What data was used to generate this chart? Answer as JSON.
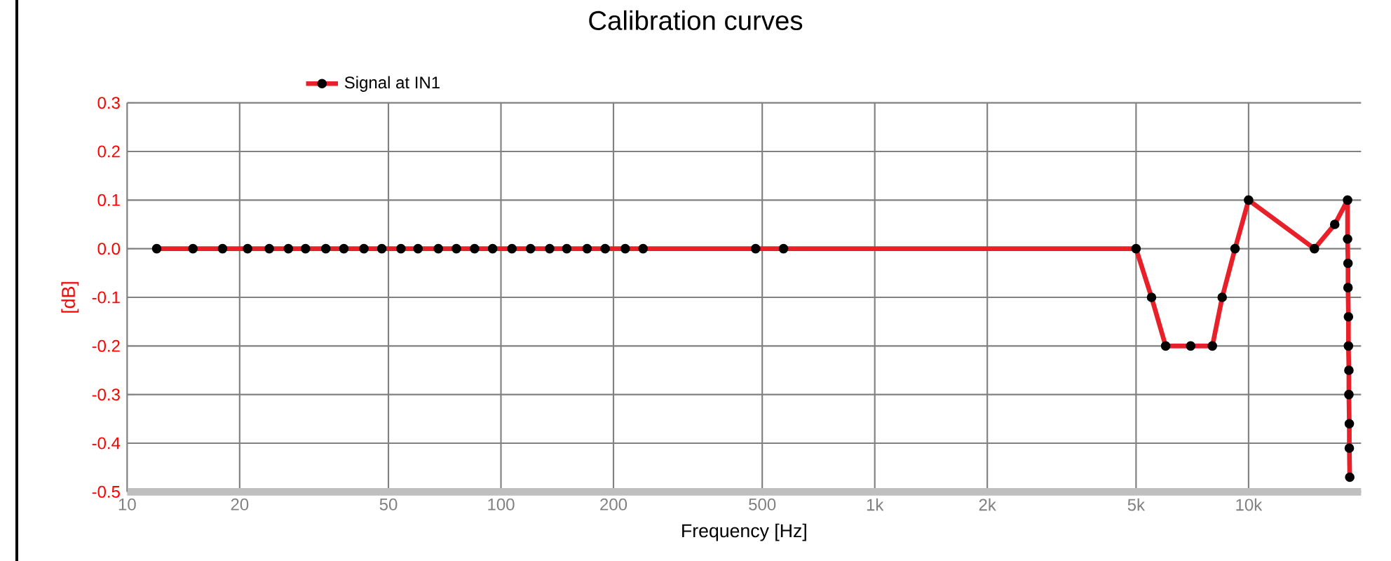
{
  "chart_data": {
    "type": "line",
    "title": "Calibration curves",
    "xlabel": "Frequency [Hz]",
    "ylabel": "[dB]",
    "log": "x",
    "grid": true,
    "legend": "top",
    "marker": "circle",
    "line_style": "solid",
    "xlim": [
      10,
      20000
    ],
    "ylim": [
      -0.5,
      0.3
    ],
    "xticks": [
      10,
      20,
      50,
      100,
      200,
      500,
      {
        "value": 1000,
        "label": "1k"
      },
      {
        "value": 2000,
        "label": "2k"
      },
      {
        "value": 5000,
        "label": "5k"
      },
      {
        "value": 10000,
        "label": "10k"
      }
    ],
    "yticks": [
      {
        "value": -0.5,
        "label": "-0.5"
      },
      {
        "value": -0.4,
        "label": "-0.4"
      },
      {
        "value": -0.3,
        "label": "-0.3"
      },
      {
        "value": -0.2,
        "label": "-0.2"
      },
      {
        "value": -0.1,
        "label": "-0.1"
      },
      {
        "value": 0,
        "label": "0.0"
      },
      {
        "value": 0.1,
        "label": "0.1"
      },
      {
        "value": 0.2,
        "label": "0.2"
      },
      {
        "value": 0.3,
        "label": "0.3"
      }
    ],
    "series": [
      {
        "name": "Signal at IN1",
        "color": "#e8202a",
        "x": [
          12,
          15,
          18,
          21,
          24,
          27,
          30,
          34,
          38,
          43,
          48,
          54,
          60,
          68,
          76,
          85,
          95,
          107,
          120,
          135,
          150,
          170,
          190,
          215,
          240,
          480,
          570,
          5000,
          5500,
          6000,
          7000,
          8000,
          8500,
          9200,
          10000,
          15000,
          17000,
          18400,
          18400,
          18450,
          18450,
          18500,
          18500,
          18550,
          18550,
          18600,
          18600,
          18650
        ],
        "values": [
          0,
          0,
          0,
          0,
          0,
          0,
          0,
          0,
          0,
          0,
          0,
          0,
          0,
          0,
          0,
          0,
          0,
          0,
          0,
          0,
          0,
          0,
          0,
          0,
          0,
          0,
          0,
          0,
          -0.1,
          -0.2,
          -0.2,
          -0.2,
          -0.1,
          0,
          0.1,
          0,
          0.05,
          0.1,
          0.02,
          -0.03,
          -0.08,
          -0.14,
          -0.2,
          -0.25,
          -0.3,
          -0.36,
          -0.41,
          -0.47
        ]
      }
    ]
  }
}
